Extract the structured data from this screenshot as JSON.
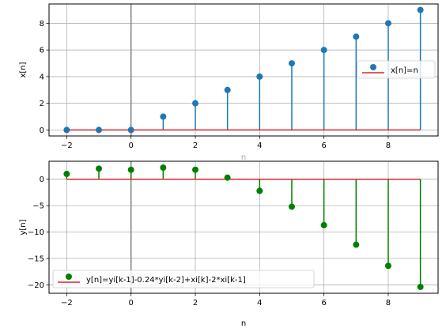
{
  "chart_data": [
    {
      "type": "stem",
      "n": [
        -2,
        -1,
        0,
        1,
        2,
        3,
        4,
        5,
        6,
        7,
        8,
        9
      ],
      "series": [
        {
          "name": "x[n]=n",
          "values": [
            0,
            0,
            0,
            1,
            2,
            3,
            4,
            5,
            6,
            7,
            8,
            9
          ],
          "color": "#1f77b4"
        }
      ],
      "baseline_color": "#d62728",
      "x_ticks": [
        "−2",
        "0",
        "2",
        "4",
        "6",
        "8"
      ],
      "y_ticks": [
        "0",
        "2",
        "4",
        "6",
        "8"
      ],
      "xlim": [
        -2.55,
        9.55
      ],
      "ylim": [
        -0.45,
        9.45
      ],
      "ylabel": "x[n]",
      "xlabel": "n",
      "grid": true,
      "legend": "center-right",
      "vertical_line_at_x": 0
    },
    {
      "type": "stem",
      "n": [
        -2,
        -1,
        0,
        1,
        2,
        3,
        4,
        5,
        6,
        7,
        8,
        9
      ],
      "series": [
        {
          "name": "y[n]=yi[k-1]-0.24*yi[k-2]+xi[k]-2*xi[k-1]",
          "values": [
            1.0,
            2.0,
            1.8,
            2.2,
            1.8,
            0.3,
            -2.2,
            -5.2,
            -8.7,
            -12.4,
            -16.4,
            -20.4
          ],
          "color": "#008000"
        }
      ],
      "baseline_color": "#d62728",
      "x_ticks": [
        "−2",
        "0",
        "2",
        "4",
        "6",
        "8"
      ],
      "y_ticks": [
        "−20",
        "−15",
        "−10",
        "−5",
        "0"
      ],
      "xlim": [
        -2.55,
        9.55
      ],
      "ylim": [
        -21.6,
        3.4
      ],
      "ylabel": "y[n]",
      "xlabel": "n",
      "grid": true,
      "legend": "bottom-left",
      "vertical_line_at_x": 0
    }
  ]
}
